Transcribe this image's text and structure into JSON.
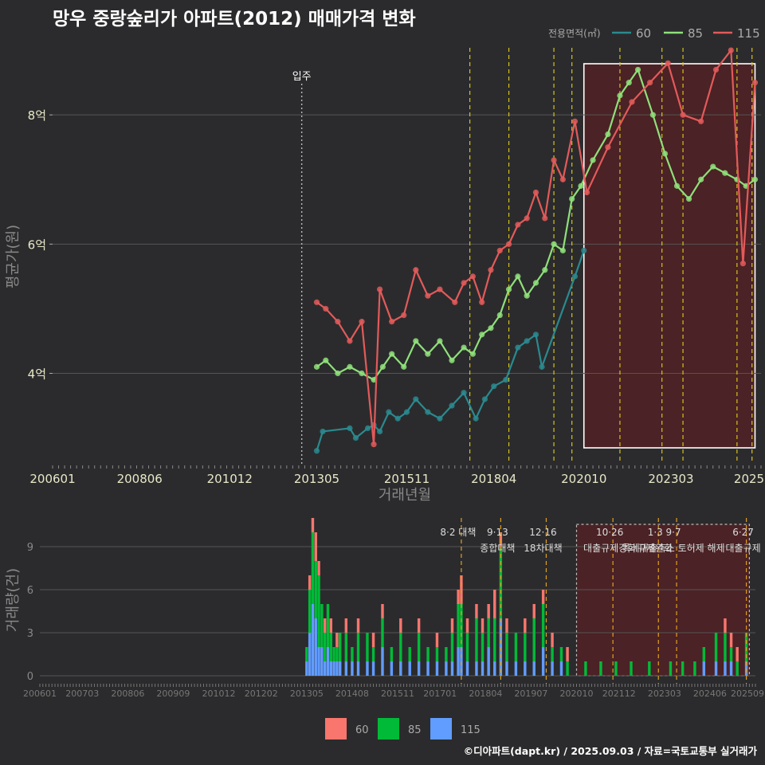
{
  "title": "망우 중랑숲리가 아파트(2012) 매매가격 변화",
  "footer": "©디아파트(dapt.kr) / 2025.09.03 / 자료=국토교통부 실거래가",
  "chart_data": [
    {
      "type": "line",
      "xlabel": "거래년월",
      "ylabel": "평균가(원)",
      "x_ticks": [
        "200601",
        "200806",
        "201012",
        "201305",
        "201511",
        "201804",
        "202010",
        "202303",
        "2025"
      ],
      "x_range": [
        "2006-01",
        "2025-09"
      ],
      "y_ticks": [
        {
          "value": 4,
          "label": "4억"
        },
        {
          "value": 6,
          "label": "6억"
        },
        {
          "value": 8,
          "label": "8억"
        }
      ],
      "y_range": [
        2.6,
        9.1
      ],
      "legend_title": "전용면적(㎡)",
      "legend_position": "top-right",
      "move_in": {
        "date": "2012-12",
        "label": "입주"
      },
      "highlight_range": [
        "2020-10",
        "2025-07"
      ],
      "policy_dates": [
        "2017-08",
        "2018-09",
        "2019-12",
        "2020-06",
        "2021-10",
        "2022-12",
        "2023-07",
        "2025-01",
        "2025-06"
      ],
      "series": [
        {
          "name": "60",
          "color": "#2a8a8f",
          "points": [
            [
              "2013-05",
              2.8
            ],
            [
              "2013-07",
              3.1
            ],
            [
              "2014-04",
              3.15
            ],
            [
              "2014-06",
              3.0
            ],
            [
              "2014-10",
              3.15
            ],
            [
              "2014-12",
              3.2
            ],
            [
              "2015-02",
              3.1
            ],
            [
              "2015-05",
              3.4
            ],
            [
              "2015-08",
              3.3
            ],
            [
              "2015-11",
              3.4
            ],
            [
              "2016-02",
              3.6
            ],
            [
              "2016-06",
              3.4
            ],
            [
              "2016-10",
              3.3
            ],
            [
              "2017-02",
              3.5
            ],
            [
              "2017-06",
              3.7
            ],
            [
              "2017-10",
              3.3
            ],
            [
              "2018-01",
              3.6
            ],
            [
              "2018-04",
              3.8
            ],
            [
              "2018-08",
              3.9
            ],
            [
              "2018-12",
              4.4
            ],
            [
              "2019-03",
              4.5
            ],
            [
              "2019-06",
              4.6
            ],
            [
              "2019-08",
              4.1
            ],
            [
              "2020-07",
              5.5
            ],
            [
              "2020-10",
              5.9
            ]
          ]
        },
        {
          "name": "85",
          "color": "#8fe07a",
          "points": [
            [
              "2013-05",
              4.1
            ],
            [
              "2013-08",
              4.2
            ],
            [
              "2013-12",
              4.0
            ],
            [
              "2014-04",
              4.1
            ],
            [
              "2014-08",
              4.0
            ],
            [
              "2014-12",
              3.9
            ],
            [
              "2015-03",
              4.1
            ],
            [
              "2015-06",
              4.3
            ],
            [
              "2015-10",
              4.1
            ],
            [
              "2016-02",
              4.5
            ],
            [
              "2016-06",
              4.3
            ],
            [
              "2016-10",
              4.5
            ],
            [
              "2017-02",
              4.2
            ],
            [
              "2017-06",
              4.4
            ],
            [
              "2017-09",
              4.3
            ],
            [
              "2017-12",
              4.6
            ],
            [
              "2018-03",
              4.7
            ],
            [
              "2018-06",
              4.9
            ],
            [
              "2018-09",
              5.3
            ],
            [
              "2018-12",
              5.5
            ],
            [
              "2019-03",
              5.2
            ],
            [
              "2019-06",
              5.4
            ],
            [
              "2019-09",
              5.6
            ],
            [
              "2019-12",
              6.0
            ],
            [
              "2020-03",
              5.9
            ],
            [
              "2020-06",
              6.7
            ],
            [
              "2020-09",
              6.9
            ],
            [
              "2021-01",
              7.3
            ],
            [
              "2021-06",
              7.7
            ],
            [
              "2021-10",
              8.3
            ],
            [
              "2022-01",
              8.5
            ],
            [
              "2022-04",
              8.7
            ],
            [
              "2022-09",
              8.0
            ],
            [
              "2023-01",
              7.4
            ],
            [
              "2023-05",
              6.9
            ],
            [
              "2023-09",
              6.7
            ],
            [
              "2024-01",
              7.0
            ],
            [
              "2024-05",
              7.2
            ],
            [
              "2024-09",
              7.1
            ],
            [
              "2025-01",
              7.0
            ],
            [
              "2025-04",
              6.9
            ],
            [
              "2025-07",
              7.0
            ]
          ]
        },
        {
          "name": "115",
          "color": "#e35a5a",
          "points": [
            [
              "2013-05",
              5.1
            ],
            [
              "2013-08",
              5.0
            ],
            [
              "2013-12",
              4.8
            ],
            [
              "2014-04",
              4.5
            ],
            [
              "2014-08",
              4.8
            ],
            [
              "2014-12",
              2.9
            ],
            [
              "2015-02",
              5.3
            ],
            [
              "2015-06",
              4.8
            ],
            [
              "2015-10",
              4.9
            ],
            [
              "2016-02",
              5.6
            ],
            [
              "2016-06",
              5.2
            ],
            [
              "2016-10",
              5.3
            ],
            [
              "2017-03",
              5.1
            ],
            [
              "2017-06",
              5.4
            ],
            [
              "2017-09",
              5.5
            ],
            [
              "2017-12",
              5.1
            ],
            [
              "2018-03",
              5.6
            ],
            [
              "2018-06",
              5.9
            ],
            [
              "2018-09",
              6.0
            ],
            [
              "2018-12",
              6.3
            ],
            [
              "2019-03",
              6.4
            ],
            [
              "2019-06",
              6.8
            ],
            [
              "2019-09",
              6.4
            ],
            [
              "2019-12",
              7.3
            ],
            [
              "2020-03",
              7.0
            ],
            [
              "2020-07",
              7.9
            ],
            [
              "2020-11",
              6.8
            ],
            [
              "2021-06",
              7.5
            ],
            [
              "2022-02",
              8.2
            ],
            [
              "2022-08",
              8.5
            ],
            [
              "2023-02",
              8.8
            ],
            [
              "2023-07",
              8.0
            ],
            [
              "2024-01",
              7.9
            ],
            [
              "2024-06",
              8.7
            ],
            [
              "2024-11",
              9.0
            ],
            [
              "2025-03",
              5.7
            ],
            [
              "2025-07",
              8.5
            ]
          ]
        }
      ]
    },
    {
      "type": "bar",
      "stacked": true,
      "ylabel": "거래량(건)",
      "x_ticks": [
        "200601",
        "200703",
        "200806",
        "200909",
        "201012",
        "201202",
        "201305",
        "201408",
        "201511",
        "201701",
        "201804",
        "201907",
        "202010",
        "202112",
        "202303",
        "202406",
        "202509"
      ],
      "y_ticks": [
        0,
        3,
        6,
        9
      ],
      "y_range": [
        0,
        11
      ],
      "highlight_range": [
        "2020-10",
        "2025-07"
      ],
      "legend_position": "bottom",
      "series_names": [
        "60",
        "85",
        "115"
      ],
      "series_colors": [
        "#f8766d",
        "#00ba38",
        "#619cff"
      ],
      "bars": [
        {
          "m": "2013-05",
          "v": [
            0,
            1,
            1
          ]
        },
        {
          "m": "2013-06",
          "v": [
            1,
            3,
            3
          ]
        },
        {
          "m": "2013-07",
          "v": [
            1,
            5,
            5
          ]
        },
        {
          "m": "2013-08",
          "v": [
            2,
            4,
            4
          ]
        },
        {
          "m": "2013-09",
          "v": [
            1,
            5,
            2
          ]
        },
        {
          "m": "2013-10",
          "v": [
            0,
            3,
            2
          ]
        },
        {
          "m": "2013-11",
          "v": [
            1,
            2,
            1
          ]
        },
        {
          "m": "2013-12",
          "v": [
            0,
            3,
            2
          ]
        },
        {
          "m": "2014-01",
          "v": [
            1,
            2,
            1
          ]
        },
        {
          "m": "2014-02",
          "v": [
            0,
            1,
            1
          ]
        },
        {
          "m": "2014-03",
          "v": [
            1,
            1,
            1
          ]
        },
        {
          "m": "2014-04",
          "v": [
            0,
            2,
            1
          ]
        },
        {
          "m": "2014-06",
          "v": [
            1,
            2,
            1
          ]
        },
        {
          "m": "2014-08",
          "v": [
            0,
            1,
            1
          ]
        },
        {
          "m": "2014-10",
          "v": [
            1,
            2,
            1
          ]
        },
        {
          "m": "2015-01",
          "v": [
            0,
            2,
            1
          ]
        },
        {
          "m": "2015-03",
          "v": [
            1,
            1,
            1
          ]
        },
        {
          "m": "2015-06",
          "v": [
            1,
            2,
            2
          ]
        },
        {
          "m": "2015-09",
          "v": [
            0,
            1,
            1
          ]
        },
        {
          "m": "2015-12",
          "v": [
            1,
            2,
            1
          ]
        },
        {
          "m": "2016-03",
          "v": [
            0,
            1,
            1
          ]
        },
        {
          "m": "2016-06",
          "v": [
            1,
            2,
            1
          ]
        },
        {
          "m": "2016-09",
          "v": [
            0,
            1,
            1
          ]
        },
        {
          "m": "2016-12",
          "v": [
            1,
            1,
            1
          ]
        },
        {
          "m": "2017-03",
          "v": [
            0,
            1,
            1
          ]
        },
        {
          "m": "2017-05",
          "v": [
            1,
            2,
            1
          ]
        },
        {
          "m": "2017-07",
          "v": [
            1,
            3,
            2
          ]
        },
        {
          "m": "2017-08",
          "v": [
            2,
            3,
            2
          ]
        },
        {
          "m": "2017-10",
          "v": [
            1,
            2,
            1
          ]
        },
        {
          "m": "2018-01",
          "v": [
            1,
            3,
            1
          ]
        },
        {
          "m": "2018-03",
          "v": [
            1,
            2,
            1
          ]
        },
        {
          "m": "2018-05",
          "v": [
            1,
            2,
            2
          ]
        },
        {
          "m": "2018-07",
          "v": [
            2,
            3,
            1
          ]
        },
        {
          "m": "2018-09",
          "v": [
            1,
            5,
            4
          ]
        },
        {
          "m": "2018-11",
          "v": [
            1,
            2,
            1
          ]
        },
        {
          "m": "2019-02",
          "v": [
            0,
            2,
            1
          ]
        },
        {
          "m": "2019-05",
          "v": [
            1,
            2,
            1
          ]
        },
        {
          "m": "2019-08",
          "v": [
            1,
            3,
            1
          ]
        },
        {
          "m": "2019-11",
          "v": [
            1,
            3,
            2
          ]
        },
        {
          "m": "2020-02",
          "v": [
            1,
            1,
            1
          ]
        },
        {
          "m": "2020-05",
          "v": [
            0,
            1,
            1
          ]
        },
        {
          "m": "2020-07",
          "v": [
            1,
            1,
            0
          ]
        },
        {
          "m": "2021-01",
          "v": [
            0,
            1,
            0
          ]
        },
        {
          "m": "2021-06",
          "v": [
            0,
            1,
            0
          ]
        },
        {
          "m": "2021-11",
          "v": [
            0,
            1,
            0
          ]
        },
        {
          "m": "2022-04",
          "v": [
            0,
            1,
            0
          ]
        },
        {
          "m": "2022-10",
          "v": [
            0,
            1,
            0
          ]
        },
        {
          "m": "2023-05",
          "v": [
            0,
            1,
            0
          ]
        },
        {
          "m": "2023-09",
          "v": [
            0,
            1,
            0
          ]
        },
        {
          "m": "2024-01",
          "v": [
            0,
            1,
            0
          ]
        },
        {
          "m": "2024-04",
          "v": [
            0,
            1,
            1
          ]
        },
        {
          "m": "2024-08",
          "v": [
            0,
            2,
            1
          ]
        },
        {
          "m": "2024-11",
          "v": [
            1,
            2,
            1
          ]
        },
        {
          "m": "2025-01",
          "v": [
            1,
            1,
            1
          ]
        },
        {
          "m": "2025-03",
          "v": [
            1,
            1,
            0
          ]
        },
        {
          "m": "2025-06",
          "v": [
            0,
            2,
            1
          ]
        }
      ],
      "policies": [
        {
          "date": "2017-08",
          "label": "8·2 대책",
          "label2": ""
        },
        {
          "date": "2018-09",
          "label": "9·13",
          "label2": "종합대책"
        },
        {
          "date": "2019-12",
          "label": "12·16",
          "label2": "18차대책"
        },
        {
          "date": "2021-10",
          "label": "10·26",
          "label2": "대출규제강화"
        },
        {
          "date": "2023-01",
          "label": "1·3",
          "label2": "규제완화"
        },
        {
          "date": "2023-07",
          "label": "9·7",
          "label2": "특례대출축소 토허제 해제"
        },
        {
          "date": "2025-06",
          "label": "6·27",
          "label2": "대출규제"
        }
      ]
    }
  ]
}
